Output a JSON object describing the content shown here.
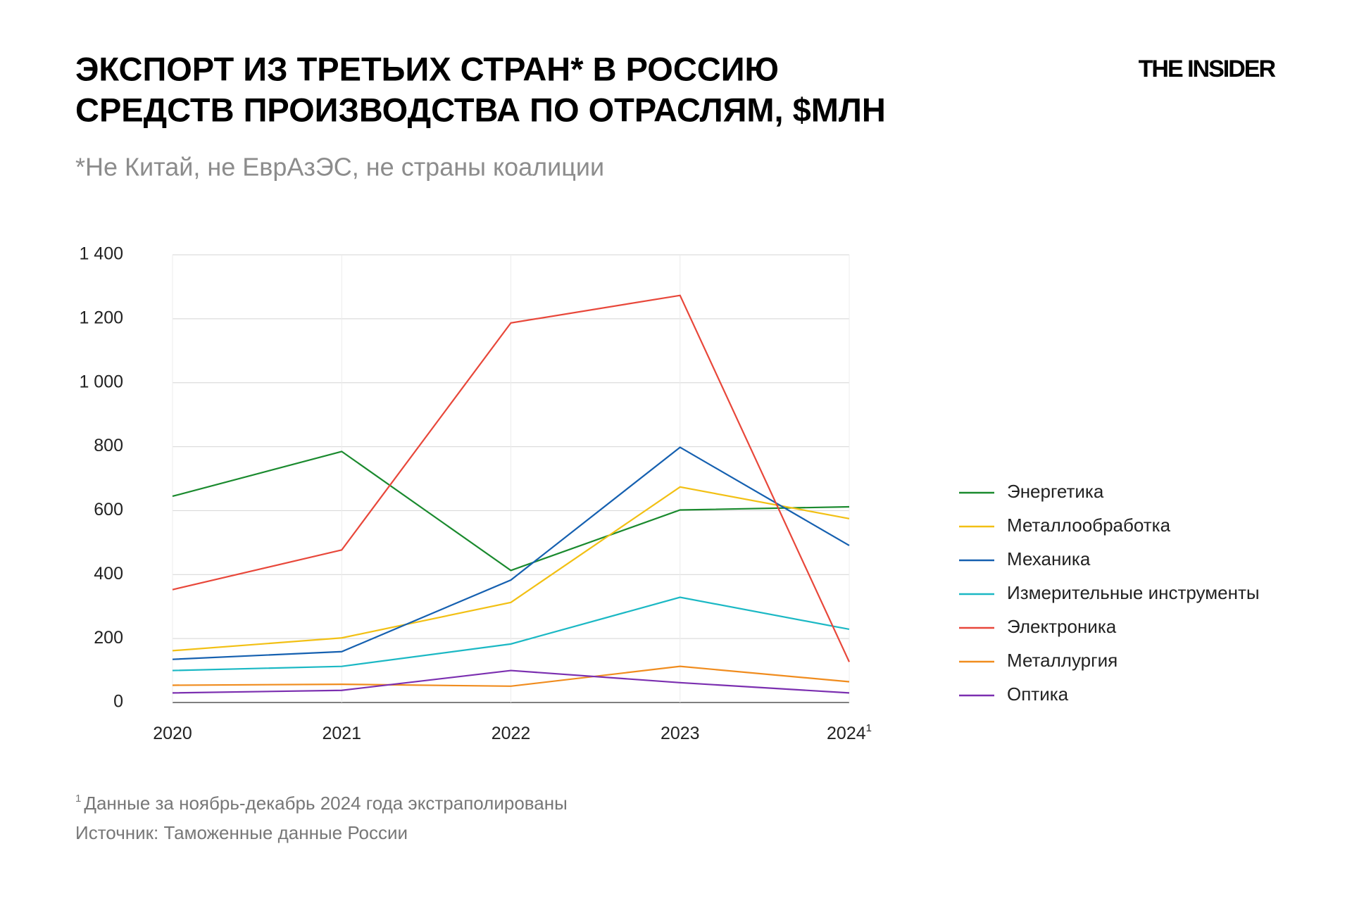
{
  "chart_data": {
    "type": "line",
    "title_lines": [
      "ЭКСПОРТ ИЗ ТРЕТЬИХ СТРАН* В РОССИЮ",
      "СРЕДСТВ ПРОИЗВОДСТВА ПО ОТРАСЛЯМ, $МЛН"
    ],
    "subtitle": "*Не Китай, не ЕврАзЭС, не страны коалиции",
    "brand": "THE INSIDER",
    "categories": [
      "2020",
      "2021",
      "2022",
      "2023",
      "2024"
    ],
    "category_notes": [
      null,
      null,
      null,
      null,
      "1"
    ],
    "series": [
      {
        "name": "Энергетика",
        "color": "#1a8a2e",
        "values": [
          645,
          785,
          413,
          602,
          612
        ]
      },
      {
        "name": "Металлообработка",
        "color": "#f2c014",
        "values": [
          162,
          202,
          313,
          674,
          575
        ]
      },
      {
        "name": "Механика",
        "color": "#1560b0",
        "values": [
          135,
          159,
          383,
          798,
          491
        ]
      },
      {
        "name": "Измерительные инструменты",
        "color": "#1bb8c4",
        "values": [
          100,
          113,
          183,
          329,
          229
        ]
      },
      {
        "name": "Электроника",
        "color": "#e8473a",
        "values": [
          353,
          477,
          1187,
          1273,
          127
        ]
      },
      {
        "name": "Металлургия",
        "color": "#f08c1e",
        "values": [
          54,
          57,
          51,
          113,
          65
        ]
      },
      {
        "name": "Оптика",
        "color": "#7b2fb0",
        "values": [
          30,
          38,
          100,
          62,
          30
        ]
      }
    ],
    "ylim": [
      0,
      1400
    ],
    "yticks": [
      0,
      200,
      400,
      600,
      800,
      {
        "value": 1000,
        "label": "1 000"
      },
      {
        "value": 1200,
        "label": "1 200"
      },
      {
        "value": 1400,
        "label": "1 400"
      }
    ],
    "grid": true,
    "legend": "right",
    "footnote": {
      "marker": "1",
      "text": "Данные за ноябрь-декабрь 2024 года экстраполированы"
    },
    "source": "Источник: Таможенные данные России"
  }
}
